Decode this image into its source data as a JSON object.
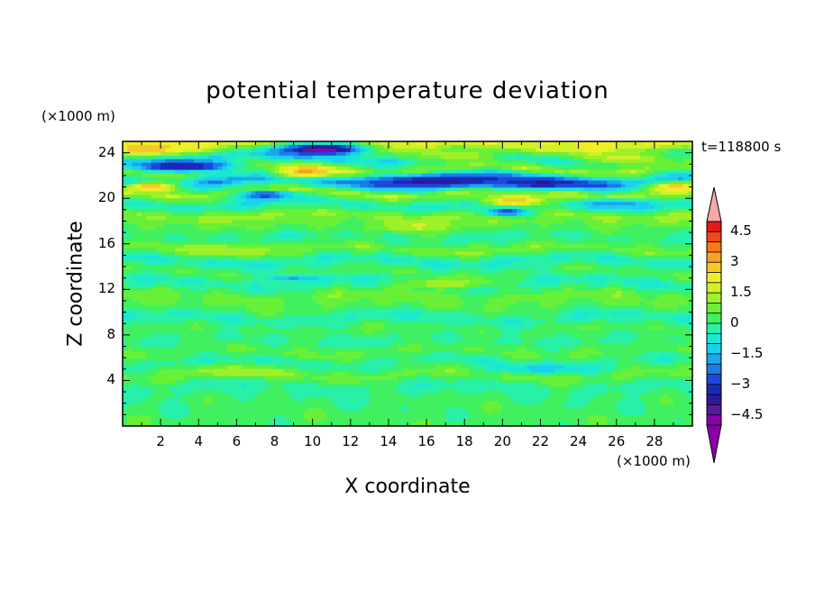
{
  "chart_data": {
    "type": "heatmap",
    "title": "potential temperature deviation",
    "time_label": "t=118800 s",
    "x_axis": {
      "label": "X coordinate",
      "unit": "(×1000 m)",
      "range": [
        0,
        30
      ],
      "ticks": [
        2,
        4,
        6,
        8,
        10,
        12,
        14,
        16,
        18,
        20,
        22,
        24,
        26,
        28
      ],
      "tick_labels": [
        "2",
        "4",
        "6",
        "8",
        "10",
        "12",
        "14",
        "16",
        "18",
        "20",
        "22",
        "24",
        "26",
        "28"
      ]
    },
    "y_axis": {
      "label": "Z coordinate",
      "unit": "(×1000 m)",
      "range": [
        0,
        25
      ],
      "ticks": [
        4,
        8,
        12,
        16,
        20,
        24
      ],
      "tick_labels": [
        "4",
        "8",
        "12",
        "16",
        "20",
        "24"
      ]
    },
    "colorbar": {
      "levels": [
        -5.0,
        -4.5,
        -4.0,
        -3.5,
        -3.0,
        -2.5,
        -2.0,
        -1.5,
        -1.0,
        -0.5,
        0.0,
        0.5,
        1.0,
        1.5,
        2.0,
        2.5,
        3.0,
        3.5,
        4.0,
        4.5,
        5.0
      ],
      "tick_values": [
        -4.5,
        -3,
        -1.5,
        0,
        1.5,
        3,
        4.5
      ],
      "tick_labels": [
        "−4.5",
        "−3",
        "−1.5",
        "0",
        "1.5",
        "3",
        "4.5"
      ],
      "colors": [
        "#8a00a8",
        "#5a1aa0",
        "#2a1a9a",
        "#1a2ab8",
        "#1a4ad8",
        "#1a7ae8",
        "#1aa8ee",
        "#1ad0f0",
        "#1ae8d0",
        "#28f0a8",
        "#40f060",
        "#68f038",
        "#9ef028",
        "#d2f028",
        "#f0ee28",
        "#f8c828",
        "#f8a020",
        "#f87818",
        "#f04818",
        "#e81818"
      ],
      "extend_low_color": "#8a00a8",
      "extend_high_color": "#f8a8a8"
    },
    "bands": [
      {
        "z": 0.5,
        "value": 0.3
      },
      {
        "z": 1.5,
        "value": 0.2
      },
      {
        "z": 2.5,
        "value": 0.1
      },
      {
        "z": 3.5,
        "value": -0.3
      },
      {
        "z": 4.5,
        "value": 0.9
      },
      {
        "z": 5.5,
        "value": -0.4
      },
      {
        "z": 6.5,
        "value": 0.6
      },
      {
        "z": 7.5,
        "value": -0.2
      },
      {
        "z": 8.5,
        "value": 0.4
      },
      {
        "z": 9.5,
        "value": -0.5
      },
      {
        "z": 10.5,
        "value": 0.5
      },
      {
        "z": 11.5,
        "value": 0.8
      },
      {
        "z": 12.5,
        "value": -0.6
      },
      {
        "z": 13.5,
        "value": 0.4
      },
      {
        "z": 14.5,
        "value": -0.7
      },
      {
        "z": 15.5,
        "value": 1.0
      },
      {
        "z": 16.5,
        "value": -0.3
      },
      {
        "z": 17.5,
        "value": 0.5
      },
      {
        "z": 18.5,
        "value": 1.3
      },
      {
        "z": 19.5,
        "value": -0.9
      },
      {
        "z": 20.5,
        "value": 1.6
      },
      {
        "z": 21.5,
        "value": -2.4
      },
      {
        "z": 22.5,
        "value": 1.4
      },
      {
        "z": 23.5,
        "value": -1.2
      },
      {
        "z": 24.5,
        "value": 2.2
      }
    ],
    "features": [
      {
        "x": 10.5,
        "z": 24.3,
        "value": -4.8,
        "rx": 2.5,
        "rz": 0.6
      },
      {
        "x": 3.2,
        "z": 22.8,
        "value": -3.8,
        "rx": 2.8,
        "rz": 0.5
      },
      {
        "x": 9.7,
        "z": 22.3,
        "value": 3.2,
        "rx": 1.8,
        "rz": 0.6
      },
      {
        "x": 16.5,
        "z": 21.5,
        "value": -3.8,
        "rx": 3.8,
        "rz": 0.6
      },
      {
        "x": 22.0,
        "z": 21.3,
        "value": -3.6,
        "rx": 2.8,
        "rz": 0.5
      },
      {
        "x": 1.5,
        "z": 21.0,
        "value": 3.0,
        "rx": 1.6,
        "rz": 0.5
      },
      {
        "x": 29.0,
        "z": 21.0,
        "value": 2.8,
        "rx": 1.4,
        "rz": 0.5
      },
      {
        "x": 20.7,
        "z": 19.8,
        "value": 3.0,
        "rx": 1.8,
        "rz": 0.5
      },
      {
        "x": 7.5,
        "z": 20.3,
        "value": -3.0,
        "rx": 1.6,
        "rz": 0.4
      },
      {
        "x": 20.2,
        "z": 18.8,
        "value": -3.0,
        "rx": 1.2,
        "rz": 0.4
      },
      {
        "x": 1.5,
        "z": 24.4,
        "value": 2.8,
        "rx": 1.8,
        "rz": 0.5
      },
      {
        "x": 26.5,
        "z": 23.5,
        "value": 1.8,
        "rx": 2.5,
        "rz": 0.6
      },
      {
        "x": 17.5,
        "z": 23.8,
        "value": 1.5,
        "rx": 2.5,
        "rz": 0.6
      },
      {
        "x": 15.5,
        "z": 17.5,
        "value": 1.6,
        "rx": 2.0,
        "rz": 0.5
      },
      {
        "x": 5.0,
        "z": 15.5,
        "value": 1.4,
        "rx": 2.5,
        "rz": 0.5
      },
      {
        "x": 17.0,
        "z": 12.5,
        "value": 1.4,
        "rx": 2.5,
        "rz": 0.5
      },
      {
        "x": 6.0,
        "z": 4.8,
        "value": 1.4,
        "rx": 3.0,
        "rz": 0.4
      },
      {
        "x": 26.0,
        "z": 19.5,
        "value": -2.0,
        "rx": 2.0,
        "rz": 0.4
      },
      {
        "x": 9.0,
        "z": 13.0,
        "value": -1.6,
        "rx": 1.5,
        "rz": 0.3
      },
      {
        "x": 22.0,
        "z": 5.0,
        "value": -1.2,
        "rx": 3.0,
        "rz": 0.4
      }
    ]
  }
}
